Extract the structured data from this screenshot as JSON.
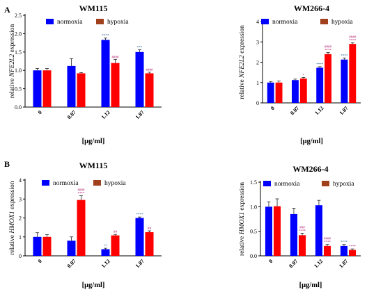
{
  "colors": {
    "normoxia": "#0000ff",
    "hypoxia": "#ff0000",
    "hypoxia_legend": "#a0401c",
    "axis": "#000000",
    "sig_normoxia": "#1f5f8b",
    "sig_hypoxia": "#b0186c"
  },
  "x_axis_label": "[μg/ml]",
  "chart_data": [
    {
      "type": "bar",
      "panel_letter": "A",
      "title": "WM115",
      "ylabel": {
        "prefix": "relative ",
        "gene": "NFE2L2",
        "suffix": " expression"
      },
      "categories": [
        "0",
        "0.07",
        "1.12",
        "1.87"
      ],
      "ylim": [
        0,
        2.5
      ],
      "yticks": [
        "0.0",
        "0.5",
        "1.0",
        "1.5",
        "2.0",
        "2.5"
      ],
      "tick_step": 0.5,
      "legend": [
        "normoxia",
        "hypoxia"
      ],
      "series": [
        {
          "name": "normoxia",
          "values": [
            1.0,
            1.12,
            1.83,
            1.5
          ],
          "errors": [
            0.05,
            0.2,
            0.05,
            0.06
          ],
          "sig": [
            "",
            "",
            "****",
            "***"
          ]
        },
        {
          "name": "hypoxia",
          "values": [
            1.0,
            0.92,
            1.2,
            0.92
          ],
          "errors": [
            0.05,
            0.02,
            0.1,
            0.03
          ],
          "sig": [
            "",
            "",
            "####",
            "####"
          ]
        }
      ]
    },
    {
      "type": "bar",
      "panel_letter": "",
      "title": "WM266-4",
      "ylabel": {
        "prefix": "relative ",
        "gene": "NFE2L2",
        "suffix": " expression"
      },
      "categories": [
        "0",
        "0.07",
        "1.12",
        "1.87"
      ],
      "ylim": [
        0,
        4
      ],
      "yticks": [
        "0",
        "1",
        "2",
        "3",
        "4"
      ],
      "tick_step": 1,
      "legend": [
        "normoxia",
        "hypoxia"
      ],
      "series": [
        {
          "name": "normoxia",
          "values": [
            1.0,
            1.12,
            1.73,
            2.13
          ],
          "errors": [
            0.05,
            0.05,
            0.05,
            0.08
          ],
          "sig": [
            "",
            "",
            "****",
            "****"
          ]
        },
        {
          "name": "hypoxia",
          "values": [
            1.0,
            1.2,
            2.4,
            2.9
          ],
          "errors": [
            0.08,
            0.05,
            0.08,
            0.05
          ],
          "sig": [
            "",
            "*",
            "####\n****",
            "####\n****"
          ]
        }
      ]
    },
    {
      "type": "bar",
      "panel_letter": "B",
      "title": "WM115",
      "ylabel": {
        "prefix": "relative ",
        "gene": "HMOX1",
        "suffix": " expression"
      },
      "categories": [
        "0",
        "0.07",
        "1.12",
        "1.87"
      ],
      "ylim": [
        0,
        4
      ],
      "yticks": [
        "0",
        "1",
        "2",
        "3",
        "4"
      ],
      "tick_step": 1,
      "legend": [
        "normoxia",
        "hypoxia"
      ],
      "series": [
        {
          "name": "normoxia",
          "values": [
            1.0,
            0.8,
            0.35,
            2.0
          ],
          "errors": [
            0.22,
            0.2,
            0.05,
            0.05
          ],
          "sig": [
            "",
            "",
            "**",
            "****"
          ]
        },
        {
          "name": "hypoxia",
          "values": [
            1.0,
            2.95,
            1.08,
            1.25
          ],
          "errors": [
            0.12,
            0.22,
            0.05,
            0.07
          ],
          "sig": [
            "",
            "####\n****",
            "##",
            "##"
          ]
        }
      ]
    },
    {
      "type": "bar",
      "panel_letter": "",
      "title": "WM266-4",
      "ylabel": {
        "prefix": "relative ",
        "gene": "HMOX1",
        "suffix": " expression"
      },
      "categories": [
        "0",
        "0.07",
        "1.12",
        "1.87"
      ],
      "ylim": [
        0,
        1.5
      ],
      "yticks": [
        "0.0",
        "0.5",
        "1.0",
        "1.5"
      ],
      "tick_step": 0.5,
      "legend": [
        "normoxia",
        "hypoxia"
      ],
      "series": [
        {
          "name": "normoxia",
          "values": [
            1.0,
            0.85,
            1.03,
            0.2
          ],
          "errors": [
            0.1,
            0.12,
            0.1,
            0.03
          ],
          "sig": [
            "",
            "",
            "",
            "****"
          ]
        },
        {
          "name": "hypoxia",
          "values": [
            1.01,
            0.42,
            0.2,
            0.12
          ],
          "errors": [
            0.15,
            0.04,
            0.03,
            0.02
          ],
          "sig": [
            "",
            "###\n****",
            "####\n****",
            "****"
          ]
        }
      ]
    }
  ]
}
